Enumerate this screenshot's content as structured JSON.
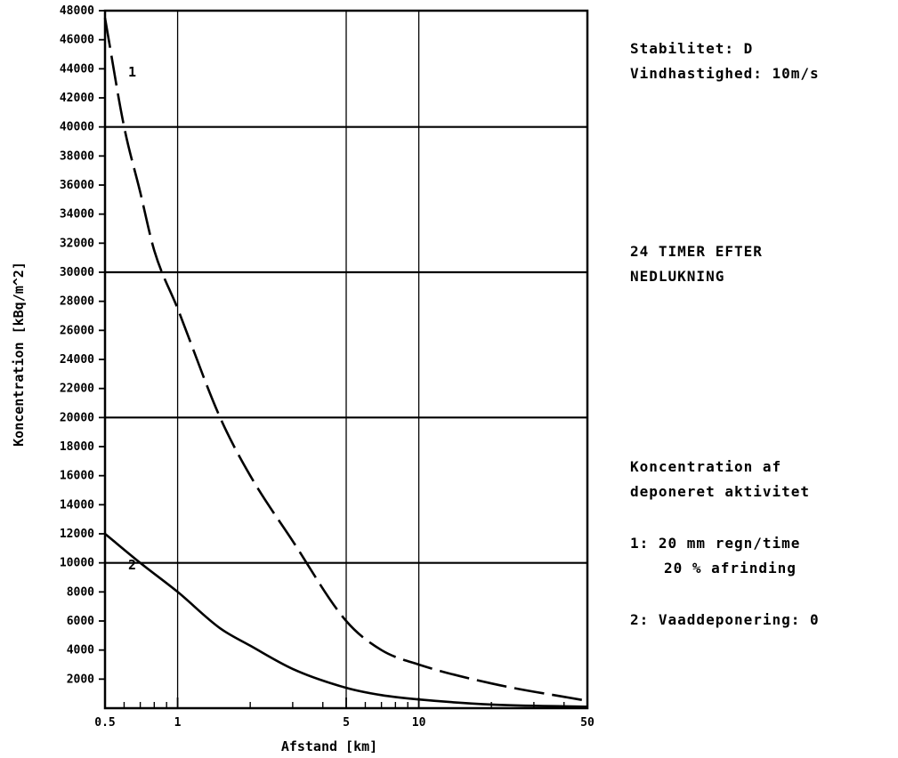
{
  "chart_data": {
    "type": "line",
    "xlabel": "Afstand [km]",
    "ylabel": "Koncentration [kBq/m^2]",
    "x_scale": "log",
    "xlim": [
      0.5,
      50
    ],
    "ylim": [
      0,
      48000
    ],
    "x_tick_labels": [
      {
        "value": 0.5,
        "label": "0.5"
      },
      {
        "value": 1,
        "label": "1"
      },
      {
        "value": 5,
        "label": "5"
      },
      {
        "value": 10,
        "label": "10"
      },
      {
        "value": 50,
        "label": "50"
      }
    ],
    "x_minor_ticks": [
      0.6,
      0.7,
      0.8,
      0.9,
      2,
      3,
      4,
      6,
      7,
      8,
      9,
      20,
      30,
      40
    ],
    "y_tick_labels": [
      {
        "value": 2000,
        "label": "2000"
      },
      {
        "value": 4000,
        "label": "4000"
      },
      {
        "value": 6000,
        "label": "6000"
      },
      {
        "value": 8000,
        "label": "8000"
      },
      {
        "value": 10000,
        "label": "10000"
      },
      {
        "value": 12000,
        "label": "12000"
      },
      {
        "value": 14000,
        "label": "14000"
      },
      {
        "value": 16000,
        "label": "16000"
      },
      {
        "value": 18000,
        "label": "18000"
      },
      {
        "value": 20000,
        "label": "20000"
      },
      {
        "value": 22000,
        "label": "22000"
      },
      {
        "value": 24000,
        "label": "24000"
      },
      {
        "value": 26000,
        "label": "26000"
      },
      {
        "value": 28000,
        "label": "28000"
      },
      {
        "value": 30000,
        "label": "30000"
      },
      {
        "value": 32000,
        "label": "32000"
      },
      {
        "value": 34000,
        "label": "34000"
      },
      {
        "value": 36000,
        "label": "36000"
      },
      {
        "value": 38000,
        "label": "38000"
      },
      {
        "value": 40000,
        "label": "40000"
      },
      {
        "value": 42000,
        "label": "42000"
      },
      {
        "value": 44000,
        "label": "44000"
      },
      {
        "value": 46000,
        "label": "46000"
      },
      {
        "value": 48000,
        "label": "48000"
      }
    ],
    "grid_y": [
      10000,
      20000,
      30000,
      40000
    ],
    "grid_x": [
      1,
      5,
      10
    ],
    "series": [
      {
        "name": "1",
        "style": "dashed",
        "x": [
          0.5,
          0.6,
          0.7,
          0.8,
          1,
          1.5,
          2,
          3,
          5,
          7,
          10,
          20,
          50
        ],
        "y": [
          47500,
          40000,
          35500,
          31500,
          27500,
          20000,
          16000,
          11500,
          6000,
          4000,
          3000,
          1700,
          500
        ]
      },
      {
        "name": "2",
        "style": "solid",
        "x": [
          0.5,
          0.7,
          1,
          1.5,
          2,
          3,
          5,
          7,
          10,
          20,
          50
        ],
        "y": [
          12000,
          10000,
          8000,
          5500,
          4300,
          2700,
          1400,
          900,
          600,
          250,
          100
        ]
      }
    ]
  },
  "side_text": {
    "line1": "Stabilitet: D",
    "line2": "Vindhastighed: 10m/s",
    "line3": "24 TIMER EFTER",
    "line4": "NEDLUKNING",
    "line5": "Koncentration af",
    "line6": "deponeret aktivitet",
    "line7": "1: 20 mm regn/time",
    "line8": "20 % afrinding",
    "line9": "2: Vaaddeponering: 0"
  }
}
